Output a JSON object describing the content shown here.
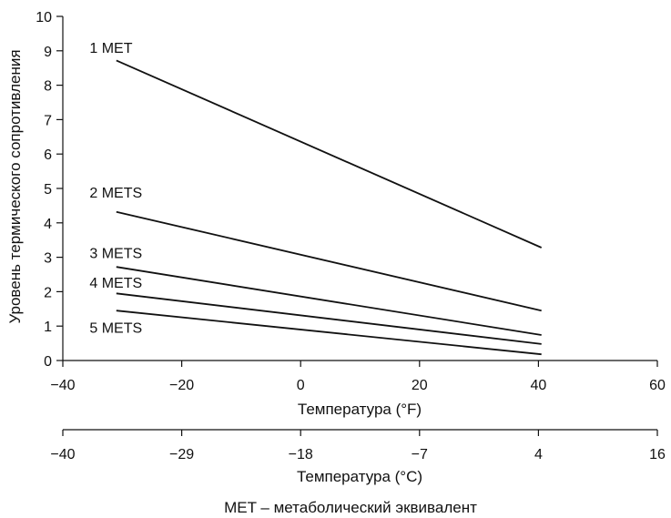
{
  "chart_data": {
    "type": "line",
    "ylabel": "Уровень термического сопротивления",
    "xlabel": "Температура (°F)",
    "xlabel_secondary": "Температура (°C)",
    "footnote": "MET – метаболический эквивалент",
    "xlim": [
      -40,
      60
    ],
    "ylim": [
      0,
      10
    ],
    "x_ticks": [
      -40,
      -20,
      0,
      20,
      40,
      60
    ],
    "y_ticks": [
      0,
      1,
      2,
      3,
      4,
      5,
      6,
      7,
      8,
      9,
      10
    ],
    "x_tick_labels": [
      "−40",
      "−20",
      "0",
      "20",
      "40",
      "60"
    ],
    "y_tick_labels": [
      "0",
      "1",
      "2",
      "3",
      "4",
      "5",
      "6",
      "7",
      "8",
      "9",
      "10"
    ],
    "secondary_x_ticks": [
      -40,
      -20,
      0,
      20,
      40,
      60
    ],
    "secondary_x_tick_labels": [
      "−40",
      "−29",
      "−18",
      "−7",
      "4",
      "16"
    ],
    "grid": false,
    "series": [
      {
        "name": "1 MET",
        "x": [
          -31,
          40.5
        ],
        "y": [
          8.72,
          3.28
        ],
        "label_at": [
          -35.5,
          9.1
        ]
      },
      {
        "name": "2 METS",
        "x": [
          -31,
          40.5
        ],
        "y": [
          4.32,
          1.45
        ],
        "label_at": [
          -35.5,
          4.9
        ]
      },
      {
        "name": "3 METS",
        "x": [
          -31,
          40.5
        ],
        "y": [
          2.72,
          0.74
        ],
        "label_at": [
          -35.5,
          3.13
        ]
      },
      {
        "name": "4 METS",
        "x": [
          -31,
          40.5
        ],
        "y": [
          1.95,
          0.48
        ],
        "label_at": [
          -35.5,
          2.28
        ]
      },
      {
        "name": "5 METS",
        "x": [
          -31,
          40.5
        ],
        "y": [
          1.45,
          0.18
        ],
        "label_at": [
          -35.5,
          0.97
        ]
      }
    ]
  }
}
